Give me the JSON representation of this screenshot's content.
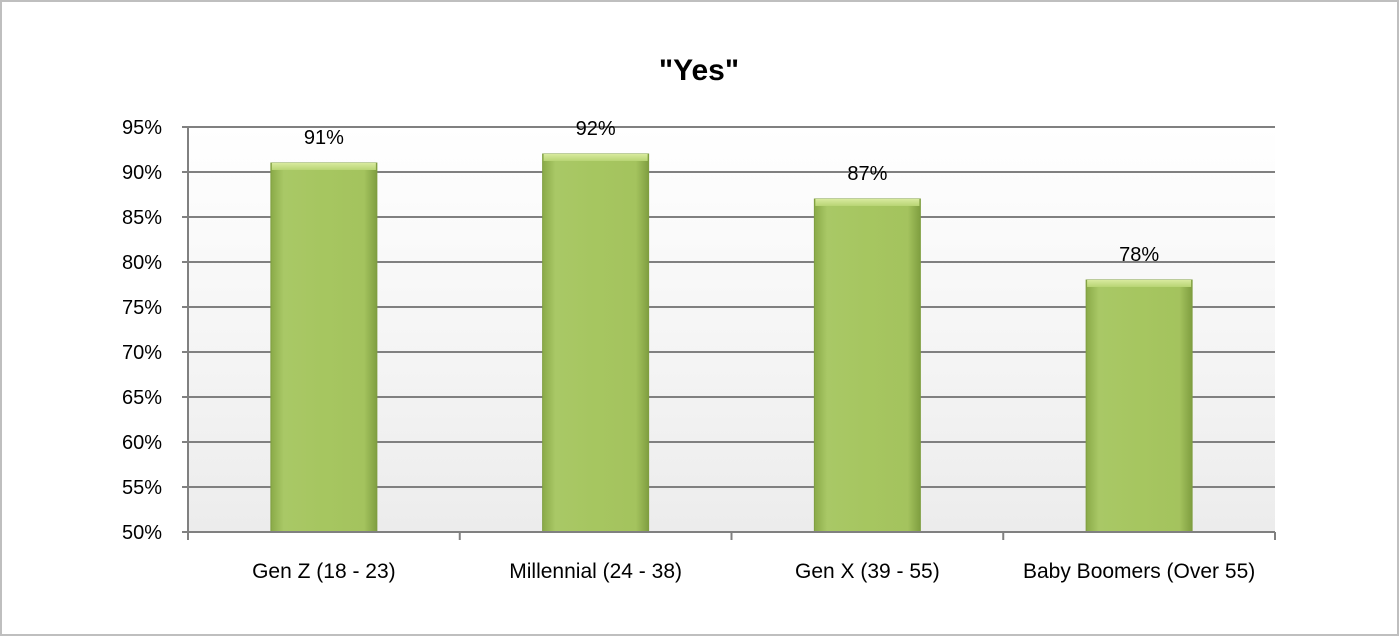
{
  "chart_data": {
    "type": "bar",
    "title": "\"Yes\"",
    "categories": [
      "Gen Z (18 - 23)",
      "Millennial (24 - 38)",
      "Gen X (39 - 55)",
      "Baby Boomers (Over 55)"
    ],
    "values": [
      91,
      92,
      87,
      78
    ],
    "data_labels": [
      "91%",
      "92%",
      "87%",
      "78%"
    ],
    "ylim": [
      50,
      95
    ],
    "ytick_values": [
      50,
      55,
      60,
      65,
      70,
      75,
      80,
      85,
      90,
      95
    ],
    "ytick_labels": [
      "50%",
      "55%",
      "60%",
      "65%",
      "70%",
      "75%",
      "80%",
      "85%",
      "90%",
      "95%"
    ],
    "xlabel": "",
    "ylabel": "",
    "grid": true,
    "legend": "none",
    "colors": {
      "bar_light": "#c3dc7f",
      "bar_mid": "#a6c660",
      "bar_dark": "#86a744",
      "gridline": "#808080",
      "plot_bg_top": "#ffffff",
      "plot_bg_bottom": "#ececec"
    }
  }
}
